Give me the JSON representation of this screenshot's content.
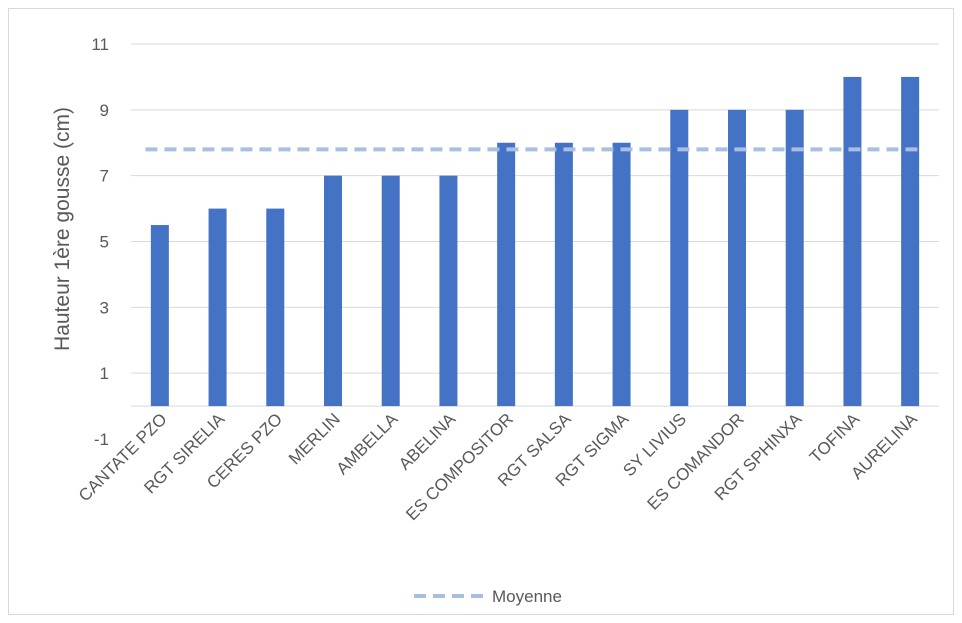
{
  "chart_data": {
    "type": "bar",
    "ylabel": "Hauteur 1ère gousse (cm)",
    "ylim": [
      -1,
      11
    ],
    "yticks": [
      -1,
      1,
      3,
      5,
      7,
      9,
      11
    ],
    "grid": true,
    "categories": [
      "CANTATE PZO",
      "RGT SIRELIA",
      "CERES PZO",
      "MERLIN",
      "AMBELLA",
      "ABELINA",
      "ES COMPOSITOR",
      "RGT SALSA",
      "RGT SIGMA",
      "SY LIVIUS",
      "ES COMANDOR",
      "RGT SPHINXA",
      "TOFINA",
      "AURELINA"
    ],
    "values": [
      5.5,
      6,
      6,
      7,
      7,
      7,
      8,
      8,
      8,
      9,
      9,
      9,
      10,
      10
    ],
    "reference_line": {
      "name": "Moyenne",
      "value": 7.8,
      "style": "dashed"
    },
    "legend": {
      "position": "bottom",
      "entries": [
        "Moyenne"
      ]
    },
    "colors": {
      "bar": "#4472c4",
      "mean_line": "#a9bee3",
      "grid": "#d9d9d9",
      "text": "#595959"
    }
  }
}
